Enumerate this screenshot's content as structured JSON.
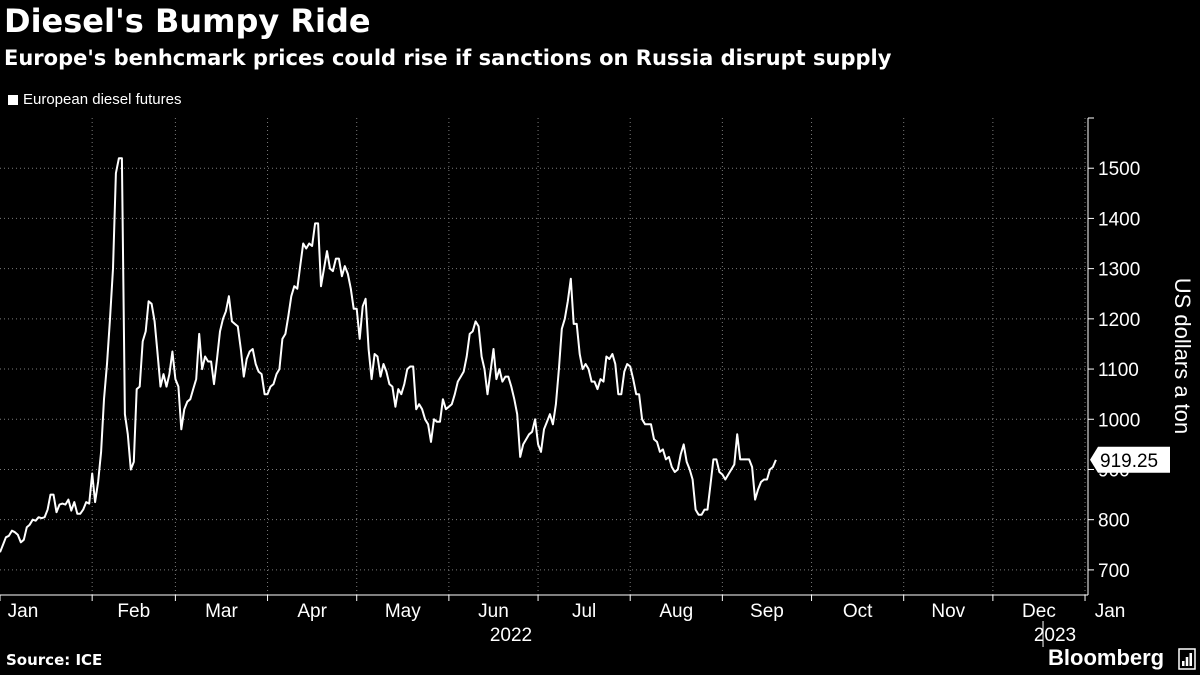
{
  "header": {
    "title": "Diesel's Bumpy Ride",
    "subtitle": "Europe's benhcmark prices could rise if sanctions on Russia disrupt supply"
  },
  "footer": {
    "source": "Source: ICE",
    "brand": "Bloomberg"
  },
  "colors": {
    "background": "#000000",
    "line": "#ffffff",
    "grid": "#7a7a7a"
  },
  "chart_data": {
    "type": "line",
    "title": "Diesel's Bumpy Ride",
    "subtitle": "Europe's benhcmark prices could rise if sanctions on Russia disrupt supply",
    "xlabel": "",
    "ylabel": "US dollars a ton",
    "x_unit": "days since 2022-01-01",
    "xlim": [
      0,
      366
    ],
    "ylim": [
      650,
      1600
    ],
    "yticks": [
      700,
      800,
      900,
      1000,
      1100,
      1200,
      1300,
      1400,
      1500
    ],
    "xticks": [
      {
        "label": "Jan",
        "day": 0
      },
      {
        "label": "Feb",
        "day": 31
      },
      {
        "label": "Mar",
        "day": 59
      },
      {
        "label": "Apr",
        "day": 90
      },
      {
        "label": "May",
        "day": 120
      },
      {
        "label": "Jun",
        "day": 151
      },
      {
        "label": "Jul",
        "day": 181
      },
      {
        "label": "Aug",
        "day": 212
      },
      {
        "label": "Sep",
        "day": 243
      },
      {
        "label": "Oct",
        "day": 273
      },
      {
        "label": "Nov",
        "day": 304
      },
      {
        "label": "Dec",
        "day": 334
      },
      {
        "label": "Jan",
        "day": 365
      }
    ],
    "year_labels": [
      {
        "label": "2022",
        "day": 182
      },
      {
        "label": "2023",
        "day": 365
      }
    ],
    "grid": true,
    "legend": {
      "position": "top-left",
      "entries": [
        "European diesel futures"
      ]
    },
    "series": [
      {
        "name": "European diesel futures",
        "points": [
          [
            0,
            735
          ],
          [
            1,
            750
          ],
          [
            2,
            765
          ],
          [
            3,
            768
          ],
          [
            4,
            778
          ],
          [
            5,
            775
          ],
          [
            6,
            770
          ],
          [
            7,
            755
          ],
          [
            8,
            760
          ],
          [
            9,
            785
          ],
          [
            10,
            790
          ],
          [
            11,
            800
          ],
          [
            12,
            798
          ],
          [
            13,
            805
          ],
          [
            14,
            803
          ],
          [
            15,
            805
          ],
          [
            16,
            820
          ],
          [
            17,
            850
          ],
          [
            18,
            850
          ],
          [
            19,
            815
          ],
          [
            20,
            830
          ],
          [
            21,
            832
          ],
          [
            22,
            830
          ],
          [
            23,
            840
          ],
          [
            24,
            818
          ],
          [
            25,
            835
          ],
          [
            26,
            812
          ],
          [
            27,
            812
          ],
          [
            28,
            820
          ],
          [
            29,
            835
          ],
          [
            30,
            832
          ],
          [
            31,
            892
          ],
          [
            32,
            835
          ],
          [
            33,
            875
          ],
          [
            34,
            935
          ],
          [
            35,
            1040
          ],
          [
            36,
            1110
          ],
          [
            37,
            1200
          ],
          [
            38,
            1300
          ],
          [
            39,
            1490
          ],
          [
            40,
            1520
          ],
          [
            41,
            1520
          ],
          [
            42,
            1010
          ],
          [
            43,
            970
          ],
          [
            44,
            900
          ],
          [
            45,
            915
          ],
          [
            46,
            1060
          ],
          [
            47,
            1065
          ],
          [
            48,
            1155
          ],
          [
            49,
            1175
          ],
          [
            50,
            1235
          ],
          [
            51,
            1230
          ],
          [
            52,
            1195
          ],
          [
            53,
            1130
          ],
          [
            54,
            1065
          ],
          [
            55,
            1090
          ],
          [
            56,
            1065
          ],
          [
            57,
            1090
          ],
          [
            58,
            1135
          ],
          [
            59,
            1080
          ],
          [
            60,
            1065
          ],
          [
            61,
            980
          ],
          [
            62,
            1020
          ],
          [
            63,
            1035
          ],
          [
            64,
            1040
          ],
          [
            65,
            1060
          ],
          [
            66,
            1080
          ],
          [
            67,
            1170
          ],
          [
            68,
            1100
          ],
          [
            69,
            1125
          ],
          [
            70,
            1115
          ],
          [
            71,
            1115
          ],
          [
            72,
            1070
          ],
          [
            73,
            1120
          ],
          [
            74,
            1175
          ],
          [
            75,
            1200
          ],
          [
            76,
            1215
          ],
          [
            77,
            1245
          ],
          [
            78,
            1195
          ],
          [
            79,
            1190
          ],
          [
            80,
            1185
          ],
          [
            81,
            1140
          ],
          [
            82,
            1085
          ],
          [
            83,
            1120
          ],
          [
            84,
            1135
          ],
          [
            85,
            1140
          ],
          [
            86,
            1110
          ],
          [
            87,
            1095
          ],
          [
            88,
            1090
          ],
          [
            89,
            1050
          ],
          [
            90,
            1050
          ],
          [
            91,
            1065
          ],
          [
            92,
            1070
          ],
          [
            93,
            1090
          ],
          [
            94,
            1100
          ],
          [
            95,
            1160
          ],
          [
            96,
            1170
          ],
          [
            97,
            1205
          ],
          [
            98,
            1245
          ],
          [
            99,
            1265
          ],
          [
            100,
            1260
          ],
          [
            101,
            1305
          ],
          [
            102,
            1350
          ],
          [
            103,
            1340
          ],
          [
            104,
            1350
          ],
          [
            105,
            1345
          ],
          [
            106,
            1390
          ],
          [
            107,
            1390
          ],
          [
            108,
            1265
          ],
          [
            109,
            1300
          ],
          [
            110,
            1335
          ],
          [
            111,
            1300
          ],
          [
            112,
            1295
          ],
          [
            113,
            1320
          ],
          [
            114,
            1320
          ],
          [
            115,
            1285
          ],
          [
            116,
            1305
          ],
          [
            117,
            1290
          ],
          [
            118,
            1260
          ],
          [
            119,
            1220
          ],
          [
            120,
            1220
          ],
          [
            121,
            1160
          ],
          [
            122,
            1225
          ],
          [
            123,
            1240
          ],
          [
            124,
            1140
          ],
          [
            125,
            1080
          ],
          [
            126,
            1130
          ],
          [
            127,
            1125
          ],
          [
            128,
            1085
          ],
          [
            129,
            1110
          ],
          [
            130,
            1095
          ],
          [
            131,
            1070
          ],
          [
            132,
            1065
          ],
          [
            133,
            1025
          ],
          [
            134,
            1060
          ],
          [
            135,
            1050
          ],
          [
            136,
            1070
          ],
          [
            137,
            1100
          ],
          [
            138,
            1105
          ],
          [
            139,
            1105
          ],
          [
            140,
            1020
          ],
          [
            141,
            1030
          ],
          [
            142,
            1020
          ],
          [
            143,
            1000
          ],
          [
            144,
            990
          ],
          [
            145,
            955
          ],
          [
            146,
            1000
          ],
          [
            147,
            995
          ],
          [
            148,
            995
          ],
          [
            149,
            1040
          ],
          [
            150,
            1020
          ],
          [
            151,
            1025
          ],
          [
            152,
            1030
          ],
          [
            153,
            1050
          ],
          [
            154,
            1075
          ],
          [
            155,
            1085
          ],
          [
            156,
            1095
          ],
          [
            157,
            1125
          ],
          [
            158,
            1170
          ],
          [
            159,
            1175
          ],
          [
            160,
            1195
          ],
          [
            161,
            1185
          ],
          [
            162,
            1125
          ],
          [
            163,
            1100
          ],
          [
            164,
            1050
          ],
          [
            165,
            1095
          ],
          [
            166,
            1140
          ],
          [
            167,
            1080
          ],
          [
            168,
            1100
          ],
          [
            169,
            1075
          ],
          [
            170,
            1085
          ],
          [
            171,
            1085
          ],
          [
            172,
            1065
          ],
          [
            173,
            1040
          ],
          [
            174,
            1010
          ],
          [
            175,
            925
          ],
          [
            176,
            950
          ],
          [
            177,
            960
          ],
          [
            178,
            970
          ],
          [
            179,
            975
          ],
          [
            180,
            1000
          ],
          [
            181,
            950
          ],
          [
            182,
            935
          ],
          [
            183,
            980
          ],
          [
            184,
            995
          ],
          [
            185,
            1010
          ],
          [
            186,
            990
          ],
          [
            187,
            1030
          ],
          [
            188,
            1100
          ],
          [
            189,
            1180
          ],
          [
            190,
            1200
          ],
          [
            191,
            1235
          ],
          [
            192,
            1280
          ],
          [
            193,
            1190
          ],
          [
            194,
            1190
          ],
          [
            195,
            1130
          ],
          [
            196,
            1100
          ],
          [
            197,
            1110
          ],
          [
            198,
            1100
          ],
          [
            199,
            1075
          ],
          [
            200,
            1075
          ],
          [
            201,
            1060
          ],
          [
            202,
            1080
          ],
          [
            203,
            1075
          ],
          [
            204,
            1125
          ],
          [
            205,
            1120
          ],
          [
            206,
            1130
          ],
          [
            207,
            1110
          ],
          [
            208,
            1050
          ],
          [
            209,
            1050
          ],
          [
            210,
            1095
          ],
          [
            211,
            1110
          ],
          [
            212,
            1105
          ],
          [
            213,
            1080
          ],
          [
            214,
            1050
          ],
          [
            215,
            1050
          ],
          [
            216,
            1000
          ],
          [
            217,
            990
          ],
          [
            218,
            990
          ],
          [
            219,
            990
          ],
          [
            220,
            960
          ],
          [
            221,
            955
          ],
          [
            222,
            935
          ],
          [
            223,
            940
          ],
          [
            224,
            920
          ],
          [
            225,
            925
          ],
          [
            226,
            905
          ],
          [
            227,
            895
          ],
          [
            228,
            900
          ],
          [
            229,
            930
          ],
          [
            230,
            950
          ],
          [
            231,
            915
          ],
          [
            232,
            900
          ],
          [
            233,
            880
          ],
          [
            234,
            820
          ],
          [
            235,
            810
          ],
          [
            236,
            810
          ],
          [
            237,
            820
          ],
          [
            238,
            820
          ],
          [
            239,
            870
          ],
          [
            240,
            920
          ],
          [
            241,
            920
          ],
          [
            242,
            895
          ],
          [
            243,
            890
          ],
          [
            244,
            880
          ],
          [
            245,
            890
          ],
          [
            246,
            900
          ],
          [
            247,
            910
          ],
          [
            248,
            970
          ],
          [
            249,
            920
          ],
          [
            250,
            920
          ],
          [
            251,
            920
          ],
          [
            252,
            920
          ],
          [
            253,
            905
          ],
          [
            254,
            840
          ],
          [
            255,
            860
          ],
          [
            256,
            875
          ],
          [
            257,
            880
          ],
          [
            258,
            880
          ],
          [
            259,
            900
          ],
          [
            260,
            905
          ],
          [
            261,
            919
          ]
        ]
      }
    ],
    "last_value_label": "919.25"
  }
}
